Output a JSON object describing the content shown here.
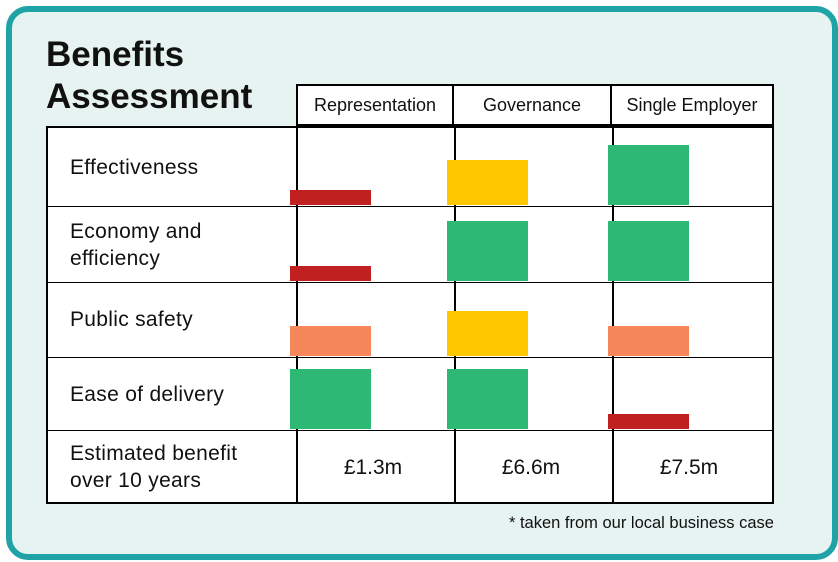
{
  "title_line1": "Benefits",
  "title_line2": "Assessment",
  "columns": [
    "Representation",
    "Governance",
    "Single Employer"
  ],
  "rows": [
    {
      "label_lines": [
        "Effectiveness"
      ]
    },
    {
      "label_lines": [
        "Economy and",
        "efficiency"
      ]
    },
    {
      "label_lines": [
        "Public safety"
      ]
    },
    {
      "label_lines": [
        "Ease of delivery"
      ]
    }
  ],
  "benefit_label_lines": [
    "Estimated benefit",
    "over 10 years"
  ],
  "benefit_values": [
    "£1.3m",
    "£6.6m",
    "£7.5m"
  ],
  "footnote": "* taken from our local business case",
  "colors": {
    "red": "#c0201f",
    "orange": "#f5875a",
    "yellow": "#fec700",
    "green": "#2db873",
    "border": "#1fa3a6"
  },
  "chart_data": {
    "type": "heatmap",
    "scale_levels": 4,
    "categories": [
      "Effectiveness",
      "Economy and efficiency",
      "Public safety",
      "Ease of delivery"
    ],
    "series": [
      {
        "name": "Representation",
        "values": [
          1,
          1,
          2,
          4
        ],
        "colors": [
          "red",
          "red",
          "orange",
          "green"
        ]
      },
      {
        "name": "Governance",
        "values": [
          3,
          4,
          3,
          4
        ],
        "colors": [
          "yellow",
          "green",
          "yellow",
          "green"
        ]
      },
      {
        "name": "Single Employer",
        "values": [
          4,
          4,
          2,
          1
        ],
        "colors": [
          "green",
          "green",
          "orange",
          "red"
        ]
      }
    ],
    "estimated_benefit": [
      "£1.3m",
      "£6.6m",
      "£7.5m"
    ]
  }
}
